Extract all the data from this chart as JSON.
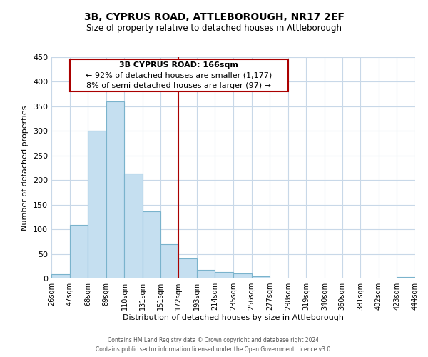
{
  "title": "3B, CYPRUS ROAD, ATTLEBOROUGH, NR17 2EF",
  "subtitle": "Size of property relative to detached houses in Attleborough",
  "xlabel": "Distribution of detached houses by size in Attleborough",
  "ylabel": "Number of detached properties",
  "bar_edges": [
    26,
    47,
    68,
    89,
    110,
    131,
    151,
    172,
    193,
    214,
    235,
    256,
    277,
    298,
    319,
    340,
    360,
    381,
    402,
    423,
    444
  ],
  "bar_heights": [
    8,
    109,
    300,
    360,
    213,
    137,
    70,
    40,
    17,
    13,
    10,
    5,
    0,
    0,
    0,
    0,
    0,
    0,
    0,
    3
  ],
  "tick_labels": [
    "26sqm",
    "47sqm",
    "68sqm",
    "89sqm",
    "110sqm",
    "131sqm",
    "151sqm",
    "172sqm",
    "193sqm",
    "214sqm",
    "235sqm",
    "256sqm",
    "277sqm",
    "298sqm",
    "319sqm",
    "340sqm",
    "360sqm",
    "381sqm",
    "402sqm",
    "423sqm",
    "444sqm"
  ],
  "bar_color": "#c5dff0",
  "bar_edge_color": "#7ab3cc",
  "vline_x": 172,
  "vline_color": "#aa0000",
  "ylim": [
    0,
    450
  ],
  "yticks": [
    0,
    50,
    100,
    150,
    200,
    250,
    300,
    350,
    400,
    450
  ],
  "annotation_title": "3B CYPRUS ROAD: 166sqm",
  "annotation_line1": "← 92% of detached houses are smaller (1,177)",
  "annotation_line2": "8% of semi-detached houses are larger (97) →",
  "annotation_box_color": "#ffffff",
  "annotation_box_edge_color": "#aa0000",
  "footer_line1": "Contains HM Land Registry data © Crown copyright and database right 2024.",
  "footer_line2": "Contains public sector information licensed under the Open Government Licence v3.0.",
  "background_color": "#ffffff",
  "grid_color": "#c8d8e8",
  "title_fontsize": 10,
  "subtitle_fontsize": 8.5,
  "ylabel_fontsize": 8,
  "xlabel_fontsize": 8,
  "tick_fontsize": 7,
  "ann_fontsize": 8
}
